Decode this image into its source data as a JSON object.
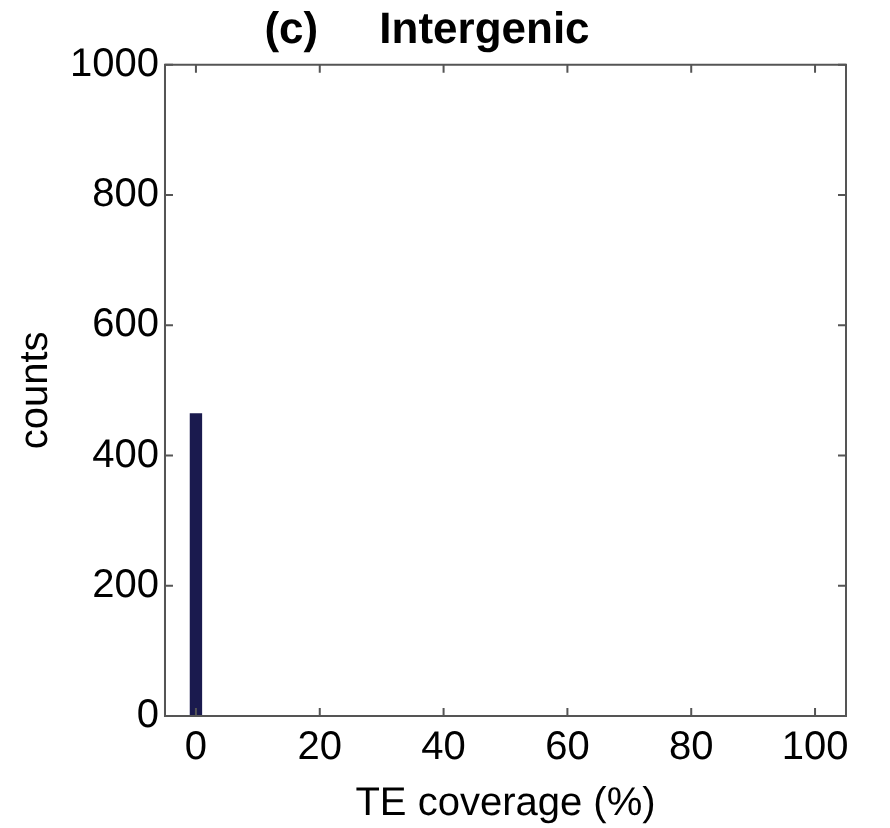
{
  "chart_data": {
    "type": "histogram",
    "title": "(c)     Intergenic",
    "xlabel": "TE coverage (%)",
    "ylabel": "counts",
    "bins": [
      -1,
      1
    ],
    "values": [
      465
    ],
    "color": "#1a1a4e",
    "xlim": [
      -5,
      105
    ],
    "xticks": [
      0,
      20,
      40,
      60,
      80,
      100
    ],
    "ylim": [
      0,
      1000
    ],
    "yticks": [
      0,
      200,
      400,
      600,
      800,
      1000
    ],
    "grid": false,
    "legend": false
  }
}
